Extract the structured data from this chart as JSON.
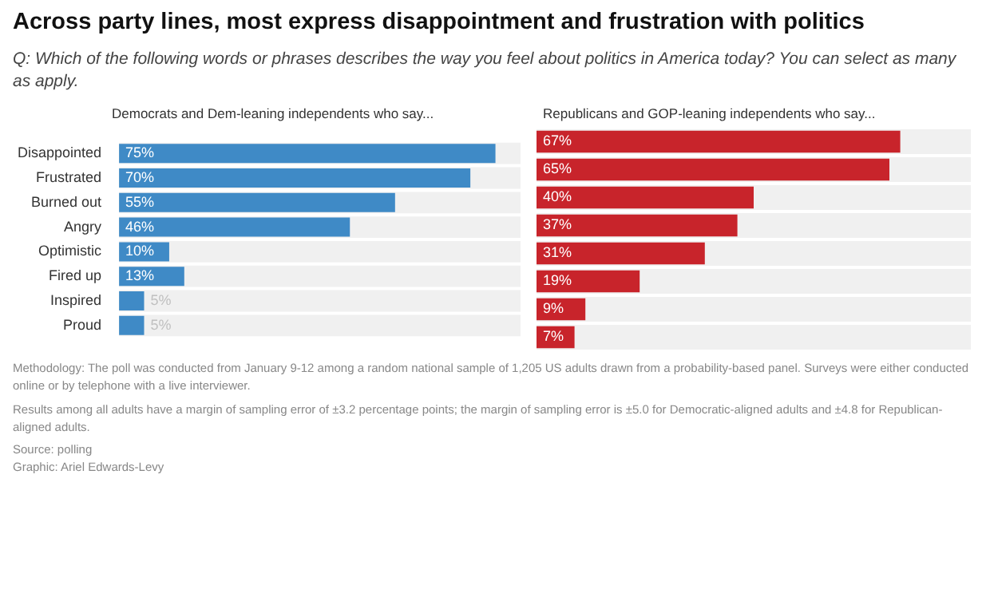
{
  "chart_data": [
    {
      "type": "other",
      "title": "Across party lines, most express disappointment and frustration with politics",
      "subtitle": "Q: Which of the following words or phrases describes the way you feel about politics in America today? You can select as many as apply."
    },
    {
      "type": "bar",
      "orientation": "horizontal",
      "tick_labels": "y",
      "title": "Democrats and Dem-leaning independents who say...",
      "categories": [
        "Disappointed",
        "Frustrated",
        "Burned out",
        "Angry",
        "Optimistic",
        "Fired up",
        "Inspired",
        "Proud"
      ],
      "values": [
        75,
        70,
        55,
        46,
        10,
        13,
        5,
        5
      ],
      "color": "#3f8ac6",
      "value_labels": [
        "75%",
        "70%",
        "55%",
        "46%",
        "10%",
        "13%",
        "5%",
        "5%"
      ]
    },
    {
      "type": "bar",
      "orientation": "horizontal",
      "tick_labels": false,
      "title": "Republicans and GOP-leaning independents who say...",
      "categories": [
        null,
        null,
        null,
        null,
        null,
        null,
        null,
        null
      ],
      "values": [
        67,
        65,
        40,
        37,
        31,
        19,
        9,
        7
      ],
      "color": "#c8242b",
      "value_labels": [
        "67%",
        "65%",
        "40%",
        "37%",
        "31%",
        "19%",
        "9%",
        "7%"
      ]
    },
    {
      "type": "other",
      "annotations": [
        "Methodology: The poll was conducted from January 9-12 among a random national sample of 1,205 US adults drawn from a probability-based panel. Surveys were either conducted online or by telephone with a live interviewer.",
        "Results among all adults have a margin of sampling error of ±3.2 percentage points; the margin of sampling error is ±5.0 for Democratic-aligned adults and ±4.8 for Republican-aligned adults.",
        "Source: polling",
        "Graphic: Ariel Edwards-Levy"
      ]
    }
  ]
}
